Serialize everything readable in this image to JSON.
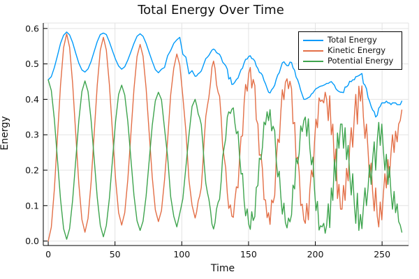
{
  "chart_data": {
    "type": "line",
    "title": "Total Energy Over Time",
    "xlabel": "Time",
    "ylabel": "Energy",
    "xlim": [
      -3.7,
      269.8
    ],
    "ylim": [
      -0.0126,
      0.6154
    ],
    "grid": true,
    "legend_position": "top-right",
    "x_ticks": [
      0,
      50,
      100,
      150,
      200,
      250
    ],
    "x_tick_labels": [
      "0",
      "50",
      "100",
      "150",
      "200",
      "250"
    ],
    "y_ticks": [
      0.0,
      0.1,
      0.2,
      0.3,
      0.4,
      0.5,
      0.6
    ],
    "y_tick_labels": [
      "0.0",
      "0.1",
      "0.2",
      "0.3",
      "0.4",
      "0.5",
      "0.6"
    ],
    "x": [
      0,
      2.3,
      4.6,
      6.9,
      9.2,
      11.5,
      13.8,
      16.0,
      18.3,
      20.6,
      22.9,
      25.2,
      27.5,
      29.8,
      32.1,
      34.4,
      36.7,
      39.0,
      41.3,
      43.5,
      45.8,
      48.1,
      50.4,
      52.7,
      55.0,
      57.3,
      59.6,
      61.9,
      64.2,
      66.5,
      68.8,
      71.0,
      73.3,
      75.6,
      77.9,
      80.2,
      82.5,
      84.8,
      87.1,
      89.4,
      91.7,
      94.0,
      96.3,
      98.5,
      100.8,
      103.1,
      105.4,
      107.7,
      110.0,
      111.1,
      112.3,
      113.4,
      114.6,
      115.7,
      116.9,
      118.0,
      119.2,
      120.3,
      121.5,
      122.6,
      123.8,
      124.9,
      126.0,
      127.2,
      128.3,
      129.5,
      130.6,
      131.8,
      132.9,
      134.1,
      135.2,
      136.4,
      137.5,
      138.6,
      139.8,
      140.9,
      142.1,
      143.2,
      144.4,
      145.5,
      146.7,
      147.8,
      149.0,
      150.1,
      151.3,
      152.4,
      153.5,
      154.7,
      155.8,
      157.0,
      158.1,
      159.3,
      160.4,
      161.6,
      162.7,
      163.9,
      165.0,
      166.1,
      167.3,
      168.4,
      169.6,
      170.7,
      171.9,
      173.0,
      174.2,
      175.3,
      176.5,
      177.6,
      178.8,
      179.9,
      181.0,
      182.2,
      183.3,
      184.5,
      185.6,
      186.8,
      187.9,
      189.1,
      190.2,
      191.4,
      192.5,
      193.6,
      194.8,
      195.9,
      197.1,
      198.2,
      199.4,
      200.5,
      201.6,
      202.8,
      203.9,
      205.1,
      206.3,
      207.4,
      208.5,
      209.7,
      210.8,
      212.0,
      213.1,
      214.3,
      215.4,
      216.6,
      217.7,
      218.9,
      220.0,
      221.1,
      222.3,
      223.4,
      224.6,
      225.7,
      226.9,
      228.0,
      229.2,
      230.3,
      231.5,
      232.6,
      233.8,
      234.9,
      236.0,
      237.2,
      238.3,
      239.5,
      240.6,
      241.8,
      242.9,
      244.1,
      245.2,
      246.4,
      247.5,
      248.6,
      249.8,
      250.9,
      252.1,
      253.2,
      254.4,
      255.5,
      256.7,
      257.8,
      259.0,
      260.1,
      261.3,
      262.4,
      263.6,
      264.8
    ],
    "series": [
      {
        "name": "Total Energy",
        "color": "#009AFA",
        "values": [
          0.455,
          0.464,
          0.49,
          0.523,
          0.558,
          0.581,
          0.59,
          0.582,
          0.56,
          0.53,
          0.502,
          0.483,
          0.477,
          0.486,
          0.507,
          0.535,
          0.563,
          0.583,
          0.587,
          0.583,
          0.562,
          0.537,
          0.513,
          0.494,
          0.485,
          0.492,
          0.511,
          0.534,
          0.558,
          0.578,
          0.585,
          0.578,
          0.558,
          0.532,
          0.507,
          0.484,
          0.475,
          0.485,
          0.49,
          0.523,
          0.538,
          0.558,
          0.568,
          0.575,
          0.527,
          0.519,
          0.472,
          0.481,
          0.465,
          0.466,
          0.472,
          0.475,
          0.48,
          0.491,
          0.504,
          0.515,
          0.519,
          0.524,
          0.532,
          0.539,
          0.542,
          0.539,
          0.532,
          0.529,
          0.527,
          0.518,
          0.505,
          0.5,
          0.495,
          0.485,
          0.457,
          0.462,
          0.442,
          0.443,
          0.449,
          0.456,
          0.46,
          0.472,
          0.484,
          0.488,
          0.503,
          0.513,
          0.514,
          0.521,
          0.523,
          0.515,
          0.514,
          0.508,
          0.494,
          0.487,
          0.476,
          0.474,
          0.468,
          0.453,
          0.444,
          0.431,
          0.42,
          0.418,
          0.427,
          0.432,
          0.44,
          0.456,
          0.469,
          0.475,
          0.49,
          0.503,
          0.506,
          0.5,
          0.495,
          0.495,
          0.505,
          0.504,
          0.489,
          0.482,
          0.463,
          0.455,
          0.442,
          0.425,
          0.413,
          0.4,
          0.4,
          0.402,
          0.405,
          0.407,
          0.415,
          0.418,
          0.425,
          0.43,
          0.432,
          0.435,
          0.437,
          0.438,
          0.44,
          0.442,
          0.445,
          0.445,
          0.448,
          0.45,
          0.445,
          0.44,
          0.43,
          0.425,
          0.422,
          0.42,
          0.42,
          0.419,
          0.435,
          0.435,
          0.44,
          0.451,
          0.45,
          0.455,
          0.455,
          0.464,
          0.465,
          0.467,
          0.47,
          0.473,
          0.445,
          0.44,
          0.43,
          0.405,
          0.395,
          0.38,
          0.37,
          0.365,
          0.35,
          0.355,
          0.375,
          0.38,
          0.39,
          0.39,
          0.39,
          0.395,
          0.39,
          0.39,
          0.385,
          0.39,
          0.39,
          0.39,
          0.385,
          0.385,
          0.385,
          0.395
        ]
      },
      {
        "name": "Kinetic Energy",
        "color": "#E36F47",
        "values": [
          0.0,
          0.039,
          0.147,
          0.293,
          0.44,
          0.546,
          0.585,
          0.547,
          0.443,
          0.302,
          0.162,
          0.061,
          0.025,
          0.064,
          0.166,
          0.303,
          0.44,
          0.539,
          0.575,
          0.539,
          0.441,
          0.308,
          0.176,
          0.08,
          0.045,
          0.08,
          0.174,
          0.302,
          0.429,
          0.521,
          0.555,
          0.522,
          0.431,
          0.305,
          0.18,
          0.088,
          0.055,
          0.086,
          0.173,
          0.285,
          0.413,
          0.488,
          0.528,
          0.497,
          0.408,
          0.309,
          0.172,
          0.101,
          0.065,
          0.082,
          0.113,
          0.127,
          0.151,
          0.212,
          0.292,
          0.352,
          0.382,
          0.406,
          0.445,
          0.491,
          0.508,
          0.487,
          0.442,
          0.42,
          0.409,
          0.349,
          0.267,
          0.235,
          0.206,
          0.135,
          0.092,
          0.102,
          0.07,
          0.067,
          0.117,
          0.153,
          0.15,
          0.228,
          0.295,
          0.297,
          0.39,
          0.442,
          0.423,
          0.473,
          0.49,
          0.432,
          0.456,
          0.439,
          0.343,
          0.33,
          0.242,
          0.244,
          0.203,
          0.117,
          0.116,
          0.066,
          0.08,
          0.047,
          0.116,
          0.108,
          0.129,
          0.227,
          0.288,
          0.278,
          0.366,
          0.427,
          0.399,
          0.448,
          0.458,
          0.43,
          0.451,
          0.43,
          0.331,
          0.335,
          0.229,
          0.237,
          0.194,
          0.1,
          0.104,
          0.06,
          0.05,
          0.106,
          0.06,
          0.145,
          0.2,
          0.181,
          0.28,
          0.344,
          0.32,
          0.404,
          0.394,
          0.398,
          0.39,
          0.42,
          0.4,
          0.34,
          0.41,
          0.3,
          0.33,
          0.21,
          0.26,
          0.12,
          0.16,
          0.09,
          0.09,
          0.157,
          0.115,
          0.205,
          0.17,
          0.261,
          0.32,
          0.265,
          0.35,
          0.414,
          0.33,
          0.437,
          0.395,
          0.438,
          0.35,
          0.29,
          0.33,
          0.255,
          0.18,
          0.22,
          0.14,
          0.085,
          0.15,
          0.07,
          0.04,
          0.11,
          0.06,
          0.13,
          0.19,
          0.15,
          0.23,
          0.18,
          0.25,
          0.3,
          0.25,
          0.31,
          0.28,
          0.33,
          0.34,
          0.37
        ]
      },
      {
        "name": "Potential Energy",
        "color": "#3EA44E",
        "values": [
          0.455,
          0.425,
          0.343,
          0.23,
          0.118,
          0.035,
          0.005,
          0.035,
          0.117,
          0.228,
          0.34,
          0.422,
          0.452,
          0.422,
          0.341,
          0.232,
          0.123,
          0.044,
          0.012,
          0.044,
          0.121,
          0.229,
          0.337,
          0.414,
          0.44,
          0.412,
          0.337,
          0.232,
          0.129,
          0.057,
          0.03,
          0.056,
          0.127,
          0.227,
          0.327,
          0.396,
          0.42,
          0.399,
          0.317,
          0.238,
          0.125,
          0.07,
          0.04,
          0.078,
          0.119,
          0.21,
          0.3,
          0.38,
          0.4,
          0.384,
          0.359,
          0.348,
          0.329,
          0.279,
          0.212,
          0.163,
          0.137,
          0.118,
          0.087,
          0.048,
          0.034,
          0.052,
          0.09,
          0.109,
          0.118,
          0.169,
          0.238,
          0.265,
          0.289,
          0.35,
          0.365,
          0.36,
          0.372,
          0.376,
          0.332,
          0.303,
          0.31,
          0.244,
          0.189,
          0.191,
          0.113,
          0.071,
          0.091,
          0.048,
          0.033,
          0.083,
          0.058,
          0.069,
          0.151,
          0.157,
          0.234,
          0.23,
          0.265,
          0.336,
          0.328,
          0.365,
          0.34,
          0.371,
          0.311,
          0.324,
          0.311,
          0.229,
          0.181,
          0.197,
          0.124,
          0.076,
          0.107,
          0.052,
          0.037,
          0.065,
          0.054,
          0.074,
          0.158,
          0.147,
          0.234,
          0.218,
          0.248,
          0.325,
          0.309,
          0.34,
          0.35,
          0.296,
          0.345,
          0.262,
          0.215,
          0.237,
          0.145,
          0.086,
          0.112,
          0.031,
          0.043,
          0.04,
          0.05,
          0.022,
          0.045,
          0.105,
          0.038,
          0.15,
          0.115,
          0.23,
          0.17,
          0.305,
          0.262,
          0.33,
          0.33,
          0.262,
          0.32,
          0.23,
          0.27,
          0.19,
          0.13,
          0.19,
          0.105,
          0.05,
          0.135,
          0.03,
          0.075,
          0.035,
          0.095,
          0.15,
          0.1,
          0.15,
          0.215,
          0.16,
          0.23,
          0.28,
          0.2,
          0.285,
          0.335,
          0.27,
          0.33,
          0.26,
          0.2,
          0.245,
          0.16,
          0.21,
          0.135,
          0.09,
          0.14,
          0.08,
          0.105,
          0.055,
          0.045,
          0.025
        ]
      }
    ],
    "colors": {
      "grid": "#E3E3E3",
      "axis": "#000000",
      "text": "#111111",
      "background": "#FFFFFF"
    }
  }
}
